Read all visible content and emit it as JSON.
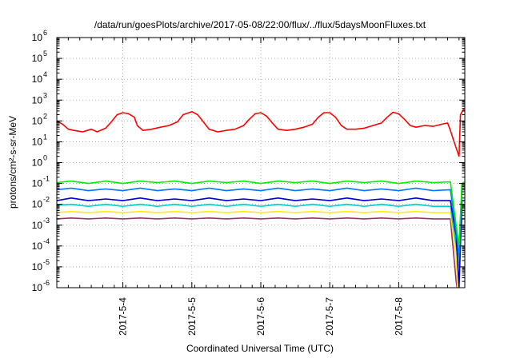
{
  "chart_data": {
    "type": "line",
    "title": "/data/run/goesPlots/archive/2017-05-08/22:00/flux/../flux/5daysMoonFluxes.txt",
    "xlabel": "Coordinated Universal Time (UTC)",
    "ylabel": "protons/cm²-s-sr-MeV",
    "yscale": "log",
    "ylim": [
      1e-06,
      1000000.0
    ],
    "y_tick_labels": [
      {
        "value": 1e-06,
        "base": "10",
        "exp": "-6"
      },
      {
        "value": 1e-05,
        "base": "10",
        "exp": "-5"
      },
      {
        "value": 0.0001,
        "base": "10",
        "exp": "-4"
      },
      {
        "value": 0.001,
        "base": "10",
        "exp": "-3"
      },
      {
        "value": 0.01,
        "base": "10",
        "exp": "-2"
      },
      {
        "value": 0.1,
        "base": "10",
        "exp": "-1"
      },
      {
        "value": 1.0,
        "base": "10",
        "exp": "0"
      },
      {
        "value": 10.0,
        "base": "10",
        "exp": "1"
      },
      {
        "value": 100.0,
        "base": "10",
        "exp": "2"
      },
      {
        "value": 1000.0,
        "base": "10",
        "exp": "3"
      },
      {
        "value": 10000.0,
        "base": "10",
        "exp": "4"
      },
      {
        "value": 100000.0,
        "base": "10",
        "exp": "5"
      },
      {
        "value": 1000000.0,
        "base": "10",
        "exp": "6"
      }
    ],
    "xlim": [
      "2017-05-03 01:00",
      "2017-05-08 23:00"
    ],
    "x_ticks": [
      {
        "value": "2017-05-04 00:00",
        "label": "2017-5-4"
      },
      {
        "value": "2017-05-05 00:00",
        "label": "2017-5-5"
      },
      {
        "value": "2017-05-06 00:00",
        "label": "2017-5-6"
      },
      {
        "value": "2017-05-07 00:00",
        "label": "2017-5-7"
      },
      {
        "value": "2017-05-08 00:00",
        "label": "2017-5-8"
      }
    ],
    "grid": true,
    "series": [
      {
        "color": "#ff0000",
        "points": [
          [
            "2017-05-03 01:00",
            100
          ],
          [
            "2017-05-03 03:00",
            70
          ],
          [
            "2017-05-03 05:00",
            40
          ],
          [
            "2017-05-03 07:00",
            35
          ],
          [
            "2017-05-03 10:00",
            30
          ],
          [
            "2017-05-03 13:00",
            40
          ],
          [
            "2017-05-03 15:00",
            30
          ],
          [
            "2017-05-03 18:00",
            45
          ],
          [
            "2017-05-03 20:00",
            90
          ],
          [
            "2017-05-03 22:00",
            200
          ],
          [
            "2017-05-04 00:00",
            250
          ],
          [
            "2017-05-04 02:00",
            220
          ],
          [
            "2017-05-04 04:00",
            150
          ],
          [
            "2017-05-04 05:00",
            60
          ],
          [
            "2017-05-04 07:00",
            35
          ],
          [
            "2017-05-04 10:00",
            40
          ],
          [
            "2017-05-04 13:00",
            50
          ],
          [
            "2017-05-04 16:00",
            60
          ],
          [
            "2017-05-04 19:00",
            90
          ],
          [
            "2017-05-04 21:00",
            200
          ],
          [
            "2017-05-05 00:00",
            280
          ],
          [
            "2017-05-05 02:00",
            200
          ],
          [
            "2017-05-05 04:00",
            90
          ],
          [
            "2017-05-05 06:00",
            40
          ],
          [
            "2017-05-05 09:00",
            30
          ],
          [
            "2017-05-05 12:00",
            35
          ],
          [
            "2017-05-05 15:00",
            40
          ],
          [
            "2017-05-05 18:00",
            60
          ],
          [
            "2017-05-05 20:00",
            120
          ],
          [
            "2017-05-05 22:00",
            220
          ],
          [
            "2017-05-06 00:00",
            250
          ],
          [
            "2017-05-06 02:00",
            170
          ],
          [
            "2017-05-06 04:00",
            80
          ],
          [
            "2017-05-06 06:00",
            40
          ],
          [
            "2017-05-06 09:00",
            35
          ],
          [
            "2017-05-06 12:00",
            40
          ],
          [
            "2017-05-06 15:00",
            50
          ],
          [
            "2017-05-06 18:00",
            70
          ],
          [
            "2017-05-06 20:00",
            150
          ],
          [
            "2017-05-06 22:00",
            250
          ],
          [
            "2017-05-07 00:00",
            250
          ],
          [
            "2017-05-07 02:00",
            150
          ],
          [
            "2017-05-07 04:00",
            60
          ],
          [
            "2017-05-07 06:00",
            40
          ],
          [
            "2017-05-07 09:00",
            40
          ],
          [
            "2017-05-07 12:00",
            45
          ],
          [
            "2017-05-07 15:00",
            60
          ],
          [
            "2017-05-07 18:00",
            80
          ],
          [
            "2017-05-07 20:00",
            150
          ],
          [
            "2017-05-07 22:00",
            260
          ],
          [
            "2017-05-08 00:00",
            220
          ],
          [
            "2017-05-08 02:00",
            120
          ],
          [
            "2017-05-08 04:00",
            60
          ],
          [
            "2017-05-08 06:00",
            50
          ],
          [
            "2017-05-08 09:00",
            60
          ],
          [
            "2017-05-08 12:00",
            55
          ],
          [
            "2017-05-08 15:00",
            70
          ],
          [
            "2017-05-08 17:00",
            80
          ],
          [
            "2017-05-08 18:00",
            35
          ],
          [
            "2017-05-08 19:30",
            8
          ],
          [
            "2017-05-08 21:00",
            2
          ],
          [
            "2017-05-08 21:30",
            200
          ],
          [
            "2017-05-08 22:30",
            350
          ],
          [
            "2017-05-08 23:00",
            300
          ]
        ]
      },
      {
        "color": "#00ee00",
        "points": [
          [
            "2017-05-03 01:00",
            0.11
          ],
          [
            "2017-05-03 06:00",
            0.13
          ],
          [
            "2017-05-03 12:00",
            0.1
          ],
          [
            "2017-05-03 18:00",
            0.13
          ],
          [
            "2017-05-04 00:00",
            0.1
          ],
          [
            "2017-05-04 06:00",
            0.13
          ],
          [
            "2017-05-04 12:00",
            0.11
          ],
          [
            "2017-05-04 18:00",
            0.13
          ],
          [
            "2017-05-05 00:00",
            0.1
          ],
          [
            "2017-05-05 06:00",
            0.13
          ],
          [
            "2017-05-05 12:00",
            0.11
          ],
          [
            "2017-05-05 18:00",
            0.13
          ],
          [
            "2017-05-06 00:00",
            0.1
          ],
          [
            "2017-05-06 06:00",
            0.13
          ],
          [
            "2017-05-06 12:00",
            0.11
          ],
          [
            "2017-05-06 18:00",
            0.13
          ],
          [
            "2017-05-07 00:00",
            0.1
          ],
          [
            "2017-05-07 06:00",
            0.13
          ],
          [
            "2017-05-07 12:00",
            0.11
          ],
          [
            "2017-05-07 18:00",
            0.13
          ],
          [
            "2017-05-08 00:00",
            0.1
          ],
          [
            "2017-05-08 06:00",
            0.13
          ],
          [
            "2017-05-08 12:00",
            0.11
          ],
          [
            "2017-05-08 18:00",
            0.12
          ],
          [
            "2017-05-08 20:00",
            0.001
          ],
          [
            "2017-05-08 21:00",
            0.0001
          ],
          [
            "2017-05-08 22:00",
            0.1
          ],
          [
            "2017-05-08 23:00",
            0.12
          ]
        ]
      },
      {
        "color": "#0077ff",
        "points": [
          [
            "2017-05-03 01:00",
            0.05
          ],
          [
            "2017-05-03 06:00",
            0.06
          ],
          [
            "2017-05-03 12:00",
            0.045
          ],
          [
            "2017-05-03 18:00",
            0.055
          ],
          [
            "2017-05-04 00:00",
            0.045
          ],
          [
            "2017-05-04 06:00",
            0.06
          ],
          [
            "2017-05-04 12:00",
            0.045
          ],
          [
            "2017-05-04 18:00",
            0.055
          ],
          [
            "2017-05-05 00:00",
            0.045
          ],
          [
            "2017-05-05 06:00",
            0.06
          ],
          [
            "2017-05-05 12:00",
            0.045
          ],
          [
            "2017-05-05 18:00",
            0.055
          ],
          [
            "2017-05-06 00:00",
            0.045
          ],
          [
            "2017-05-06 06:00",
            0.06
          ],
          [
            "2017-05-06 12:00",
            0.045
          ],
          [
            "2017-05-06 18:00",
            0.055
          ],
          [
            "2017-05-07 00:00",
            0.045
          ],
          [
            "2017-05-07 06:00",
            0.06
          ],
          [
            "2017-05-07 12:00",
            0.045
          ],
          [
            "2017-05-07 18:00",
            0.055
          ],
          [
            "2017-05-08 00:00",
            0.045
          ],
          [
            "2017-05-08 06:00",
            0.06
          ],
          [
            "2017-05-08 12:00",
            0.045
          ],
          [
            "2017-05-08 18:00",
            0.05
          ],
          [
            "2017-05-08 20:00",
            0.0005
          ],
          [
            "2017-05-08 21:00",
            3e-05
          ],
          [
            "2017-05-08 22:00",
            0.05
          ],
          [
            "2017-05-08 23:00",
            0.05
          ]
        ]
      },
      {
        "color": "#0000cc",
        "points": [
          [
            "2017-05-03 01:00",
            0.015
          ],
          [
            "2017-05-03 06:00",
            0.02
          ],
          [
            "2017-05-03 12:00",
            0.015
          ],
          [
            "2017-05-03 18:00",
            0.018
          ],
          [
            "2017-05-04 00:00",
            0.015
          ],
          [
            "2017-05-04 06:00",
            0.02
          ],
          [
            "2017-05-04 12:00",
            0.015
          ],
          [
            "2017-05-04 18:00",
            0.018
          ],
          [
            "2017-05-05 00:00",
            0.015
          ],
          [
            "2017-05-05 06:00",
            0.02
          ],
          [
            "2017-05-05 12:00",
            0.015
          ],
          [
            "2017-05-05 18:00",
            0.018
          ],
          [
            "2017-05-06 00:00",
            0.015
          ],
          [
            "2017-05-06 06:00",
            0.02
          ],
          [
            "2017-05-06 12:00",
            0.015
          ],
          [
            "2017-05-06 18:00",
            0.018
          ],
          [
            "2017-05-07 00:00",
            0.015
          ],
          [
            "2017-05-07 06:00",
            0.02
          ],
          [
            "2017-05-07 12:00",
            0.015
          ],
          [
            "2017-05-07 18:00",
            0.018
          ],
          [
            "2017-05-08 00:00",
            0.015
          ],
          [
            "2017-05-08 06:00",
            0.02
          ],
          [
            "2017-05-08 12:00",
            0.015
          ],
          [
            "2017-05-08 18:00",
            0.015
          ],
          [
            "2017-05-08 20:00",
            0.0003
          ],
          [
            "2017-05-08 21:00",
            1e-06
          ],
          [
            "2017-05-08 22:00",
            0.015
          ],
          [
            "2017-05-08 23:00",
            0.015
          ]
        ]
      },
      {
        "color": "#00cccc",
        "points": [
          [
            "2017-05-03 01:00",
            0.009
          ],
          [
            "2017-05-03 06:00",
            0.01
          ],
          [
            "2017-05-03 12:00",
            0.008
          ],
          [
            "2017-05-03 18:00",
            0.01
          ],
          [
            "2017-05-04 00:00",
            0.008
          ],
          [
            "2017-05-04 06:00",
            0.01
          ],
          [
            "2017-05-04 12:00",
            0.008
          ],
          [
            "2017-05-04 18:00",
            0.01
          ],
          [
            "2017-05-05 00:00",
            0.008
          ],
          [
            "2017-05-05 06:00",
            0.01
          ],
          [
            "2017-05-05 12:00",
            0.008
          ],
          [
            "2017-05-05 18:00",
            0.01
          ],
          [
            "2017-05-06 00:00",
            0.008
          ],
          [
            "2017-05-06 06:00",
            0.01
          ],
          [
            "2017-05-06 12:00",
            0.008
          ],
          [
            "2017-05-06 18:00",
            0.01
          ],
          [
            "2017-05-07 00:00",
            0.008
          ],
          [
            "2017-05-07 06:00",
            0.01
          ],
          [
            "2017-05-07 12:00",
            0.008
          ],
          [
            "2017-05-07 18:00",
            0.01
          ],
          [
            "2017-05-08 00:00",
            0.008
          ],
          [
            "2017-05-08 06:00",
            0.01
          ],
          [
            "2017-05-08 12:00",
            0.008
          ],
          [
            "2017-05-08 18:00",
            0.008
          ],
          [
            "2017-05-08 20:00",
            0.0001
          ],
          [
            "2017-05-08 21:00",
            1e-05
          ],
          [
            "2017-05-08 22:00",
            0.009
          ],
          [
            "2017-05-08 23:00",
            0.009
          ]
        ]
      },
      {
        "color": "#ffee00",
        "points": [
          [
            "2017-05-03 01:00",
            0.004
          ],
          [
            "2017-05-03 06:00",
            0.0045
          ],
          [
            "2017-05-03 12:00",
            0.004
          ],
          [
            "2017-05-03 18:00",
            0.0045
          ],
          [
            "2017-05-04 00:00",
            0.004
          ],
          [
            "2017-05-04 06:00",
            0.0045
          ],
          [
            "2017-05-04 12:00",
            0.004
          ],
          [
            "2017-05-04 18:00",
            0.0045
          ],
          [
            "2017-05-05 00:00",
            0.004
          ],
          [
            "2017-05-05 06:00",
            0.0045
          ],
          [
            "2017-05-05 12:00",
            0.004
          ],
          [
            "2017-05-05 18:00",
            0.0045
          ],
          [
            "2017-05-06 00:00",
            0.004
          ],
          [
            "2017-05-06 06:00",
            0.0045
          ],
          [
            "2017-05-06 12:00",
            0.004
          ],
          [
            "2017-05-06 18:00",
            0.0045
          ],
          [
            "2017-05-07 00:00",
            0.004
          ],
          [
            "2017-05-07 06:00",
            0.0045
          ],
          [
            "2017-05-07 12:00",
            0.004
          ],
          [
            "2017-05-07 18:00",
            0.0045
          ],
          [
            "2017-05-08 00:00",
            0.004
          ],
          [
            "2017-05-08 06:00",
            0.0045
          ],
          [
            "2017-05-08 12:00",
            0.004
          ],
          [
            "2017-05-08 18:00",
            0.004
          ],
          [
            "2017-05-08 20:00",
            3e-05
          ],
          [
            "2017-05-08 20:30",
            1e-06
          ],
          [
            "2017-05-08 22:00",
            0.004
          ],
          [
            "2017-05-08 23:00",
            0.004
          ]
        ]
      },
      {
        "color": "#993366",
        "points": [
          [
            "2017-05-03 01:00",
            0.002
          ],
          [
            "2017-05-03 06:00",
            0.0022
          ],
          [
            "2017-05-03 12:00",
            0.002
          ],
          [
            "2017-05-03 18:00",
            0.0022
          ],
          [
            "2017-05-04 00:00",
            0.002
          ],
          [
            "2017-05-04 06:00",
            0.0022
          ],
          [
            "2017-05-04 12:00",
            0.002
          ],
          [
            "2017-05-04 18:00",
            0.0022
          ],
          [
            "2017-05-05 00:00",
            0.002
          ],
          [
            "2017-05-05 06:00",
            0.0022
          ],
          [
            "2017-05-05 12:00",
            0.002
          ],
          [
            "2017-05-05 18:00",
            0.0022
          ],
          [
            "2017-05-06 00:00",
            0.002
          ],
          [
            "2017-05-06 06:00",
            0.0022
          ],
          [
            "2017-05-06 12:00",
            0.002
          ],
          [
            "2017-05-06 18:00",
            0.0022
          ],
          [
            "2017-05-07 00:00",
            0.002
          ],
          [
            "2017-05-07 06:00",
            0.0022
          ],
          [
            "2017-05-07 12:00",
            0.002
          ],
          [
            "2017-05-07 18:00",
            0.0022
          ],
          [
            "2017-05-08 00:00",
            0.002
          ],
          [
            "2017-05-08 06:00",
            0.0022
          ],
          [
            "2017-05-08 12:00",
            0.002
          ],
          [
            "2017-05-08 18:00",
            0.002
          ],
          [
            "2017-05-08 20:00",
            2e-06
          ],
          [
            "2017-05-08 20:20",
            1e-06
          ],
          [
            "2017-05-08 22:00",
            0.002
          ],
          [
            "2017-05-08 23:00",
            0.002
          ]
        ]
      }
    ]
  }
}
